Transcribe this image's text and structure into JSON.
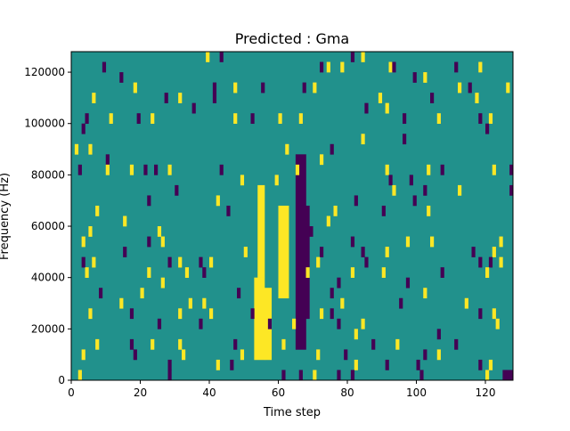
{
  "chart_data": {
    "type": "heatmap",
    "title": "Predicted : Gma",
    "xlabel": "Time step",
    "ylabel": "Frequency (Hz)",
    "xlim": [
      0,
      128
    ],
    "ylim": [
      0,
      128000
    ],
    "n_cols": 128,
    "n_rows": 32,
    "row_step_hz": 4000,
    "xticks": [
      0,
      20,
      40,
      60,
      80,
      100,
      120
    ],
    "yticks": [
      0,
      20000,
      40000,
      60000,
      80000,
      100000,
      120000
    ],
    "ytick_labels": [
      "0",
      "20000",
      "40000",
      "60000",
      "80000",
      "100000",
      "120000"
    ],
    "value_colors": {
      "-1": "#440154",
      "0": "#21918c",
      "1": "#fde725"
    },
    "background_value": 0,
    "blocks": [
      [
        53,
        55,
        2,
        9,
        1
      ],
      [
        54,
        55,
        10,
        18,
        1
      ],
      [
        56,
        57,
        2,
        8,
        1
      ],
      [
        60,
        62,
        8,
        16,
        1
      ],
      [
        65,
        67,
        3,
        21,
        -1
      ],
      [
        66,
        68,
        6,
        16,
        -1
      ]
    ],
    "cells": [
      [
        39,
        31,
        1
      ],
      [
        43,
        31,
        -1
      ],
      [
        9,
        30,
        -1
      ],
      [
        72,
        30,
        -1
      ],
      [
        74,
        30,
        1
      ],
      [
        78,
        30,
        1
      ],
      [
        81,
        31,
        -1
      ],
      [
        84,
        31,
        1
      ],
      [
        92,
        30,
        1
      ],
      [
        93,
        30,
        -1
      ],
      [
        111,
        30,
        -1
      ],
      [
        118,
        30,
        1
      ],
      [
        14,
        29,
        -1
      ],
      [
        99,
        29,
        -1
      ],
      [
        102,
        29,
        1
      ],
      [
        18,
        28,
        1
      ],
      [
        41,
        28,
        -1
      ],
      [
        47,
        28,
        1
      ],
      [
        55,
        28,
        -1
      ],
      [
        67,
        28,
        -1
      ],
      [
        70,
        28,
        1
      ],
      [
        112,
        28,
        1
      ],
      [
        115,
        28,
        -1
      ],
      [
        126,
        28,
        1
      ],
      [
        6,
        27,
        1
      ],
      [
        27,
        27,
        -1
      ],
      [
        31,
        27,
        1
      ],
      [
        41,
        27,
        -1
      ],
      [
        89,
        27,
        1
      ],
      [
        104,
        27,
        -1
      ],
      [
        117,
        27,
        1
      ],
      [
        35,
        26,
        -1
      ],
      [
        85,
        26,
        -1
      ],
      [
        91,
        26,
        1
      ],
      [
        4,
        25,
        -1
      ],
      [
        11,
        25,
        1
      ],
      [
        19,
        25,
        -1
      ],
      [
        23,
        25,
        1
      ],
      [
        47,
        25,
        1
      ],
      [
        52,
        25,
        -1
      ],
      [
        60,
        25,
        1
      ],
      [
        66,
        25,
        1
      ],
      [
        96,
        25,
        -1
      ],
      [
        106,
        25,
        1
      ],
      [
        118,
        25,
        -1
      ],
      [
        121,
        25,
        1
      ],
      [
        3,
        24,
        -1
      ],
      [
        120,
        24,
        -1
      ],
      [
        84,
        23,
        1
      ],
      [
        96,
        23,
        -1
      ],
      [
        1,
        22,
        1
      ],
      [
        5,
        22,
        1
      ],
      [
        62,
        22,
        1
      ],
      [
        75,
        22,
        -1
      ],
      [
        10,
        21,
        -1
      ],
      [
        72,
        21,
        1
      ],
      [
        2,
        20,
        -1
      ],
      [
        10,
        20,
        1
      ],
      [
        17,
        20,
        1
      ],
      [
        21,
        20,
        -1
      ],
      [
        24,
        20,
        -1
      ],
      [
        28,
        20,
        1
      ],
      [
        43,
        20,
        -1
      ],
      [
        65,
        20,
        1
      ],
      [
        91,
        20,
        1
      ],
      [
        103,
        20,
        1
      ],
      [
        107,
        20,
        -1
      ],
      [
        122,
        20,
        1
      ],
      [
        127,
        20,
        -1
      ],
      [
        59,
        19,
        1
      ],
      [
        92,
        19,
        -1
      ],
      [
        98,
        19,
        -1
      ],
      [
        49,
        19,
        1
      ],
      [
        93,
        18,
        1
      ],
      [
        102,
        18,
        -1
      ],
      [
        112,
        18,
        1
      ],
      [
        127,
        18,
        -1
      ],
      [
        30,
        18,
        -1
      ],
      [
        42,
        17,
        1
      ],
      [
        99,
        17,
        -1
      ],
      [
        22,
        17,
        -1
      ],
      [
        82,
        17,
        -1
      ],
      [
        7,
        16,
        1
      ],
      [
        15,
        15,
        1
      ],
      [
        45,
        16,
        -1
      ],
      [
        90,
        16,
        -1
      ],
      [
        103,
        16,
        1
      ],
      [
        76,
        16,
        1
      ],
      [
        74,
        15,
        1
      ],
      [
        5,
        14,
        1
      ],
      [
        25,
        14,
        1
      ],
      [
        69,
        14,
        -1
      ],
      [
        3,
        13,
        1
      ],
      [
        22,
        13,
        -1
      ],
      [
        26,
        13,
        1
      ],
      [
        81,
        13,
        -1
      ],
      [
        97,
        13,
        1
      ],
      [
        104,
        13,
        1
      ],
      [
        124,
        13,
        1
      ],
      [
        15,
        12,
        -1
      ],
      [
        50,
        12,
        1
      ],
      [
        72,
        12,
        -1
      ],
      [
        91,
        12,
        1
      ],
      [
        84,
        12,
        -1
      ],
      [
        116,
        12,
        -1
      ],
      [
        122,
        12,
        1
      ],
      [
        3,
        11,
        -1
      ],
      [
        6,
        11,
        1
      ],
      [
        28,
        11,
        -1
      ],
      [
        31,
        11,
        1
      ],
      [
        37,
        11,
        -1
      ],
      [
        40,
        11,
        1
      ],
      [
        71,
        11,
        1
      ],
      [
        85,
        11,
        -1
      ],
      [
        118,
        11,
        -1
      ],
      [
        121,
        11,
        -1
      ],
      [
        124,
        11,
        1
      ],
      [
        4,
        10,
        1
      ],
      [
        22,
        10,
        1
      ],
      [
        33,
        10,
        1
      ],
      [
        38,
        10,
        -1
      ],
      [
        68,
        10,
        1
      ],
      [
        81,
        10,
        1
      ],
      [
        90,
        10,
        1
      ],
      [
        107,
        10,
        -1
      ],
      [
        120,
        10,
        1
      ],
      [
        26,
        9,
        1
      ],
      [
        77,
        9,
        -1
      ],
      [
        97,
        9,
        -1
      ],
      [
        8,
        8,
        -1
      ],
      [
        20,
        8,
        1
      ],
      [
        48,
        8,
        -1
      ],
      [
        75,
        8,
        -1
      ],
      [
        102,
        8,
        1
      ],
      [
        14,
        7,
        1
      ],
      [
        38,
        7,
        1
      ],
      [
        34,
        7,
        1
      ],
      [
        78,
        7,
        1
      ],
      [
        95,
        7,
        -1
      ],
      [
        114,
        7,
        1
      ],
      [
        5,
        6,
        1
      ],
      [
        17,
        6,
        -1
      ],
      [
        31,
        6,
        1
      ],
      [
        40,
        6,
        1
      ],
      [
        52,
        6,
        -1
      ],
      [
        72,
        6,
        1
      ],
      [
        75,
        6,
        -1
      ],
      [
        118,
        6,
        -1
      ],
      [
        122,
        6,
        1
      ],
      [
        25,
        5,
        -1
      ],
      [
        37,
        5,
        -1
      ],
      [
        57,
        5,
        -1
      ],
      [
        64,
        5,
        1
      ],
      [
        77,
        5,
        -1
      ],
      [
        84,
        5,
        1
      ],
      [
        123,
        5,
        1
      ],
      [
        82,
        4,
        1
      ],
      [
        106,
        4,
        -1
      ],
      [
        17,
        3,
        -1
      ],
      [
        23,
        3,
        1
      ],
      [
        31,
        3,
        1
      ],
      [
        47,
        3,
        -1
      ],
      [
        61,
        3,
        1
      ],
      [
        87,
        3,
        -1
      ],
      [
        94,
        3,
        1
      ],
      [
        111,
        3,
        -1
      ],
      [
        7,
        3,
        1
      ],
      [
        3,
        2,
        1
      ],
      [
        18,
        2,
        -1
      ],
      [
        32,
        2,
        1
      ],
      [
        49,
        2,
        1
      ],
      [
        71,
        2,
        1
      ],
      [
        79,
        2,
        -1
      ],
      [
        102,
        2,
        -1
      ],
      [
        106,
        2,
        1
      ],
      [
        28,
        1,
        -1
      ],
      [
        42,
        1,
        1
      ],
      [
        46,
        1,
        -1
      ],
      [
        82,
        1,
        1
      ],
      [
        91,
        1,
        -1
      ],
      [
        100,
        1,
        -1
      ],
      [
        118,
        1,
        -1
      ],
      [
        121,
        1,
        1
      ],
      [
        2,
        0,
        1
      ],
      [
        28,
        0,
        -1
      ],
      [
        61,
        0,
        -1
      ],
      [
        66,
        0,
        -1
      ],
      [
        70,
        0,
        1
      ],
      [
        77,
        0,
        -1
      ],
      [
        81,
        0,
        -1
      ],
      [
        120,
        0,
        1
      ],
      [
        125,
        0,
        -1
      ],
      [
        126,
        0,
        -1
      ],
      [
        127,
        0,
        -1
      ],
      [
        101,
        0,
        -1
      ]
    ]
  }
}
